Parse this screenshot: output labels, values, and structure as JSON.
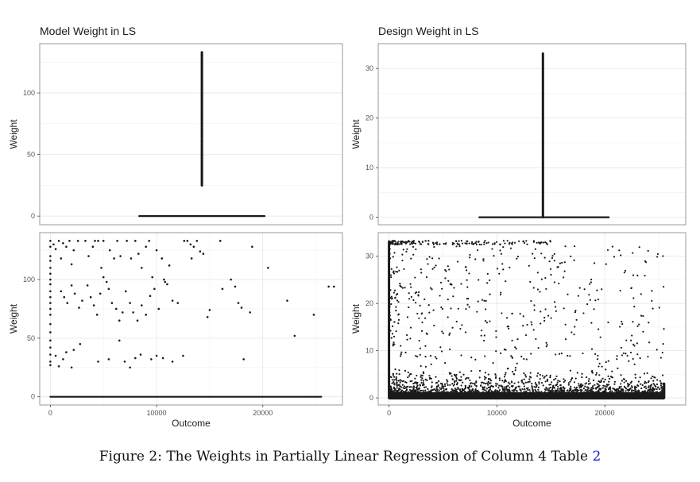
{
  "figure": {
    "caption_text": "Figure 2: The Weights in Partially Linear Regression of Column 4 Table ",
    "caption_ref": "2",
    "colors": {
      "point": "#1a1a1a",
      "grid_major": "#e6e6e6",
      "grid_minor": "#f2f2f2",
      "panel_border": "#9a9a9a"
    }
  },
  "chart_data": [
    {
      "id": "model-top",
      "type": "scatter",
      "title": "Model Weight in LS",
      "xlabel": "",
      "ylabel": "Weight",
      "xlim": [
        -1000,
        27000
      ],
      "ylim": [
        -7,
        140
      ],
      "yticks": [
        0,
        50,
        100
      ],
      "grid": true,
      "segments": [
        {
          "x": [
            8200,
            19800
          ],
          "y": [
            0,
            0
          ]
        },
        {
          "x": [
            14000,
            14000
          ],
          "y": [
            25,
            133
          ]
        }
      ]
    },
    {
      "id": "design-top",
      "type": "scatter",
      "title": "Design Weight in LS",
      "xlabel": "",
      "ylabel": "Weight",
      "xlim": [
        -1000,
        27000
      ],
      "ylim": [
        -1.5,
        35
      ],
      "yticks": [
        0,
        10,
        20,
        30
      ],
      "grid": true,
      "segments": [
        {
          "x": [
            8200,
            20000
          ],
          "y": [
            0,
            0
          ]
        },
        {
          "x": [
            14000,
            14000
          ],
          "y": [
            0,
            33
          ]
        }
      ]
    },
    {
      "id": "model-bottom",
      "type": "scatter",
      "title": "",
      "xlabel": "Outcome",
      "ylabel": "Weight",
      "xlim": [
        -1000,
        27500
      ],
      "ylim": [
        -7,
        140
      ],
      "xticks": [
        0,
        10000,
        20000
      ],
      "yticks": [
        0,
        50,
        100
      ],
      "grid": true,
      "segments": [
        {
          "x": [
            0,
            25500
          ],
          "y": [
            0,
            0
          ]
        }
      ],
      "points": [
        [
          0,
          133
        ],
        [
          0,
          128
        ],
        [
          0,
          120
        ],
        [
          0,
          116
        ],
        [
          0,
          110
        ],
        [
          0,
          105
        ],
        [
          0,
          100
        ],
        [
          0,
          96
        ],
        [
          0,
          90
        ],
        [
          0,
          85
        ],
        [
          0,
          80
        ],
        [
          0,
          75
        ],
        [
          0,
          70
        ],
        [
          0,
          62
        ],
        [
          0,
          55
        ],
        [
          0,
          48
        ],
        [
          0,
          42
        ],
        [
          0,
          36
        ],
        [
          0,
          30
        ],
        [
          0,
          27
        ],
        [
          300,
          130
        ],
        [
          500,
          126
        ],
        [
          800,
          133
        ],
        [
          1000,
          118
        ],
        [
          1200,
          131
        ],
        [
          1500,
          128
        ],
        [
          1800,
          133
        ],
        [
          2000,
          113
        ],
        [
          2200,
          125
        ],
        [
          2600,
          133
        ],
        [
          500,
          35
        ],
        [
          800,
          26
        ],
        [
          1200,
          32
        ],
        [
          1500,
          38
        ],
        [
          2000,
          25
        ],
        [
          2200,
          40
        ],
        [
          2800,
          45
        ],
        [
          1000,
          90
        ],
        [
          1300,
          85
        ],
        [
          1600,
          80
        ],
        [
          2000,
          95
        ],
        [
          2300,
          88
        ],
        [
          2700,
          76
        ],
        [
          3000,
          82
        ],
        [
          3300,
          133
        ],
        [
          3600,
          120
        ],
        [
          4000,
          128
        ],
        [
          4200,
          133
        ],
        [
          4500,
          133
        ],
        [
          4800,
          110
        ],
        [
          5000,
          133
        ],
        [
          5300,
          98
        ],
        [
          5600,
          125
        ],
        [
          6000,
          118
        ],
        [
          6300,
          133
        ],
        [
          6600,
          120
        ],
        [
          3500,
          95
        ],
        [
          3800,
          85
        ],
        [
          4100,
          78
        ],
        [
          4400,
          70
        ],
        [
          4700,
          88
        ],
        [
          5000,
          102
        ],
        [
          5500,
          92
        ],
        [
          5800,
          80
        ],
        [
          6200,
          75
        ],
        [
          6500,
          65
        ],
        [
          6800,
          72
        ],
        [
          7100,
          90
        ],
        [
          4500,
          30
        ],
        [
          5500,
          32
        ],
        [
          6500,
          48
        ],
        [
          7000,
          30
        ],
        [
          7500,
          25
        ],
        [
          8000,
          33
        ],
        [
          8500,
          36
        ],
        [
          7200,
          133
        ],
        [
          7600,
          118
        ],
        [
          8000,
          133
        ],
        [
          8300,
          122
        ],
        [
          8600,
          110
        ],
        [
          9000,
          128
        ],
        [
          9300,
          133
        ],
        [
          9600,
          102
        ],
        [
          10000,
          125
        ],
        [
          10500,
          118
        ],
        [
          10800,
          98
        ],
        [
          11200,
          112
        ],
        [
          7500,
          80
        ],
        [
          7800,
          72
        ],
        [
          8200,
          65
        ],
        [
          8600,
          78
        ],
        [
          9000,
          70
        ],
        [
          9400,
          86
        ],
        [
          9800,
          92
        ],
        [
          10200,
          75
        ],
        [
          10700,
          100
        ],
        [
          11000,
          96
        ],
        [
          11500,
          82
        ],
        [
          12000,
          80
        ],
        [
          9500,
          32
        ],
        [
          10000,
          35
        ],
        [
          10600,
          33
        ],
        [
          11500,
          30
        ],
        [
          12500,
          35
        ],
        [
          12600,
          133
        ],
        [
          12900,
          133
        ],
        [
          13200,
          130
        ],
        [
          13500,
          128
        ],
        [
          13800,
          133
        ],
        [
          14100,
          124
        ],
        [
          14400,
          122
        ],
        [
          13300,
          118
        ],
        [
          14800,
          68
        ],
        [
          15000,
          74
        ],
        [
          16000,
          133
        ],
        [
          16200,
          92
        ],
        [
          17000,
          100
        ],
        [
          17400,
          94
        ],
        [
          17700,
          80
        ],
        [
          18000,
          76
        ],
        [
          18200,
          32
        ],
        [
          19000,
          128
        ],
        [
          18800,
          72
        ],
        [
          20500,
          110
        ],
        [
          22300,
          82
        ],
        [
          23000,
          52
        ],
        [
          24800,
          70
        ],
        [
          26200,
          94
        ],
        [
          26700,
          94
        ]
      ]
    },
    {
      "id": "design-bottom",
      "type": "scatter",
      "title": "",
      "xlabel": "Outcome",
      "ylabel": "Weight",
      "xlim": [
        -1000,
        27500
      ],
      "ylim": [
        -1.5,
        35
      ],
      "xticks": [
        0,
        10000,
        20000
      ],
      "yticks": [
        0,
        10,
        20,
        30
      ],
      "grid": true,
      "segments": [
        {
          "x": [
            0,
            0
          ],
          "y": [
            0,
            33
          ]
        },
        {
          "x": [
            0,
            25500
          ],
          "y": [
            0,
            0
          ]
        },
        {
          "x": [
            25500,
            25500
          ],
          "y": [
            0,
            3
          ]
        }
      ],
      "point_density": "very dense near y=0, sparse above 10, edge band at y=33"
    }
  ]
}
